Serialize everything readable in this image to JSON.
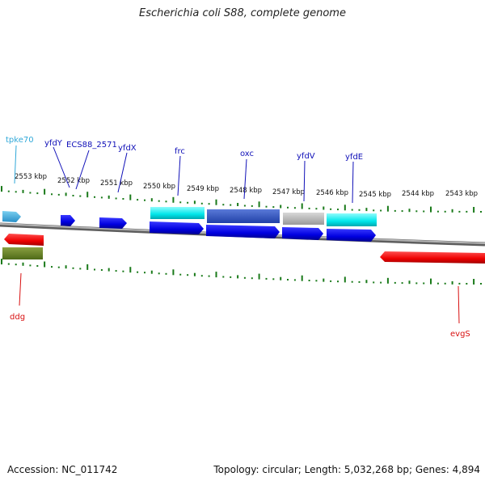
{
  "title": "Escherichia coli S88, complete genome",
  "footer": {
    "accession": "Accession: NC_011742",
    "summary": "Topology: circular; Length: 5,032,268 bp; Genes: 4,894"
  },
  "colors": {
    "backbone": "#8c8c8c",
    "tick": "#1a7a1a",
    "label_blue": "#1010b8",
    "label_cyan": "#30a8d8",
    "label_red": "#d81010"
  },
  "ruler": {
    "labels": [
      "2553 kbp",
      "2552 kbp",
      "2551 kbp",
      "2550 kbp",
      "2549 kbp",
      "2548 kbp",
      "2547 kbp",
      "2546 kbp",
      "2545 kbp",
      "2544 kbp",
      "2543 kbp"
    ]
  },
  "genes": {
    "tpke70": "tpke70",
    "yfdY": "yfdY",
    "ecs88_2571": "ECS88_2571",
    "yfdX": "yfdX",
    "frc": "frc",
    "oxc": "oxc",
    "yfdV": "yfdV",
    "yfdE": "yfdE",
    "ddg": "ddg",
    "evgS": "evgS"
  }
}
